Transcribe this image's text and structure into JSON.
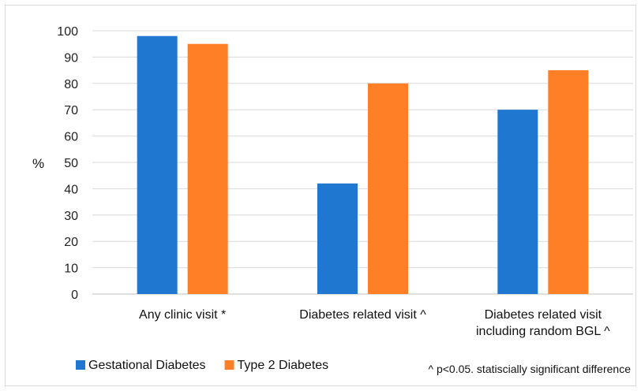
{
  "chart_data": {
    "type": "bar",
    "title": "",
    "xlabel": "",
    "ylabel": "%",
    "ylim": [
      0,
      100
    ],
    "yticks": [
      0,
      10,
      20,
      30,
      40,
      50,
      60,
      70,
      80,
      90,
      100
    ],
    "grid": true,
    "legend_position": "bottom-left",
    "categories": [
      [
        "Any clinic visit *"
      ],
      [
        "Diabetes related visit ^"
      ],
      [
        "Diabetes related visit",
        "including random BGL ^"
      ]
    ],
    "series": [
      {
        "name": "Gestational Diabetes",
        "color": "#1f77d0",
        "values": [
          98,
          42,
          70
        ]
      },
      {
        "name": "Type 2 Diabetes",
        "color": "#ff7f27",
        "values": [
          95,
          80,
          85
        ]
      }
    ],
    "annotation": "^ p<0.05. statiscially significant difference"
  }
}
